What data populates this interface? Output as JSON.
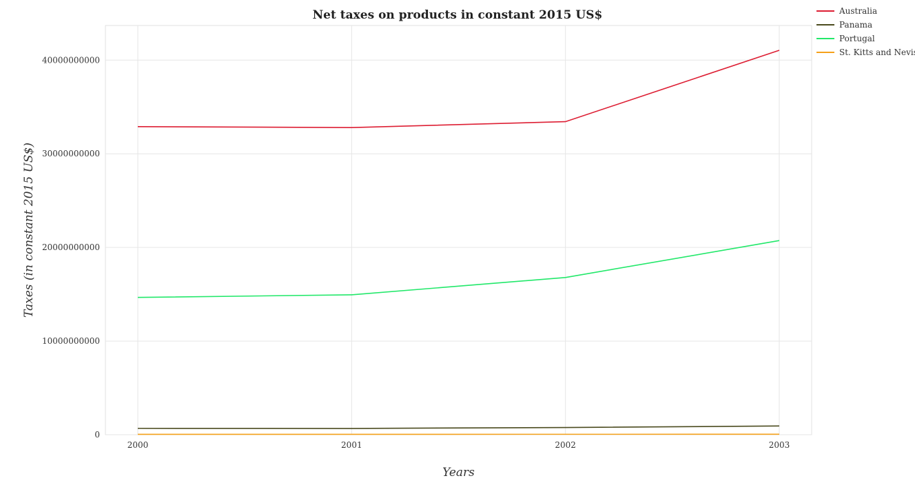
{
  "chart_data": {
    "type": "line",
    "title": "Net taxes on products in constant 2015 US$",
    "xlabel": "Years",
    "ylabel": "Taxes (in constant 2015 US$)",
    "x": [
      "2000",
      "2001",
      "2002",
      "2003"
    ],
    "x_tick_labels": [
      "2000",
      "2001",
      "2002",
      "2003"
    ],
    "ylim": [
      0,
      43700000000
    ],
    "y_ticks": [
      0,
      10000000000,
      20000000000,
      30000000000,
      40000000000
    ],
    "y_tick_labels": [
      "0",
      "10000000000",
      "20000000000",
      "30000000000",
      "40000000000"
    ],
    "grid": true,
    "legend_position": "top-right",
    "series": [
      {
        "name": "Australia",
        "color": "#dd1e33",
        "values": [
          32900000000,
          32800000000,
          33430000000,
          41050000000
        ]
      },
      {
        "name": "Panama",
        "color": "#4b4b1f",
        "values": [
          680000000,
          670000000,
          770000000,
          930000000
        ]
      },
      {
        "name": "Portugal",
        "color": "#22e86a",
        "values": [
          14660000000,
          14940000000,
          16790000000,
          20730000000
        ]
      },
      {
        "name": "St. Kitts and Nevis",
        "color": "#f5a11b",
        "values": [
          38000000,
          42000000,
          46000000,
          48000000
        ]
      }
    ]
  }
}
